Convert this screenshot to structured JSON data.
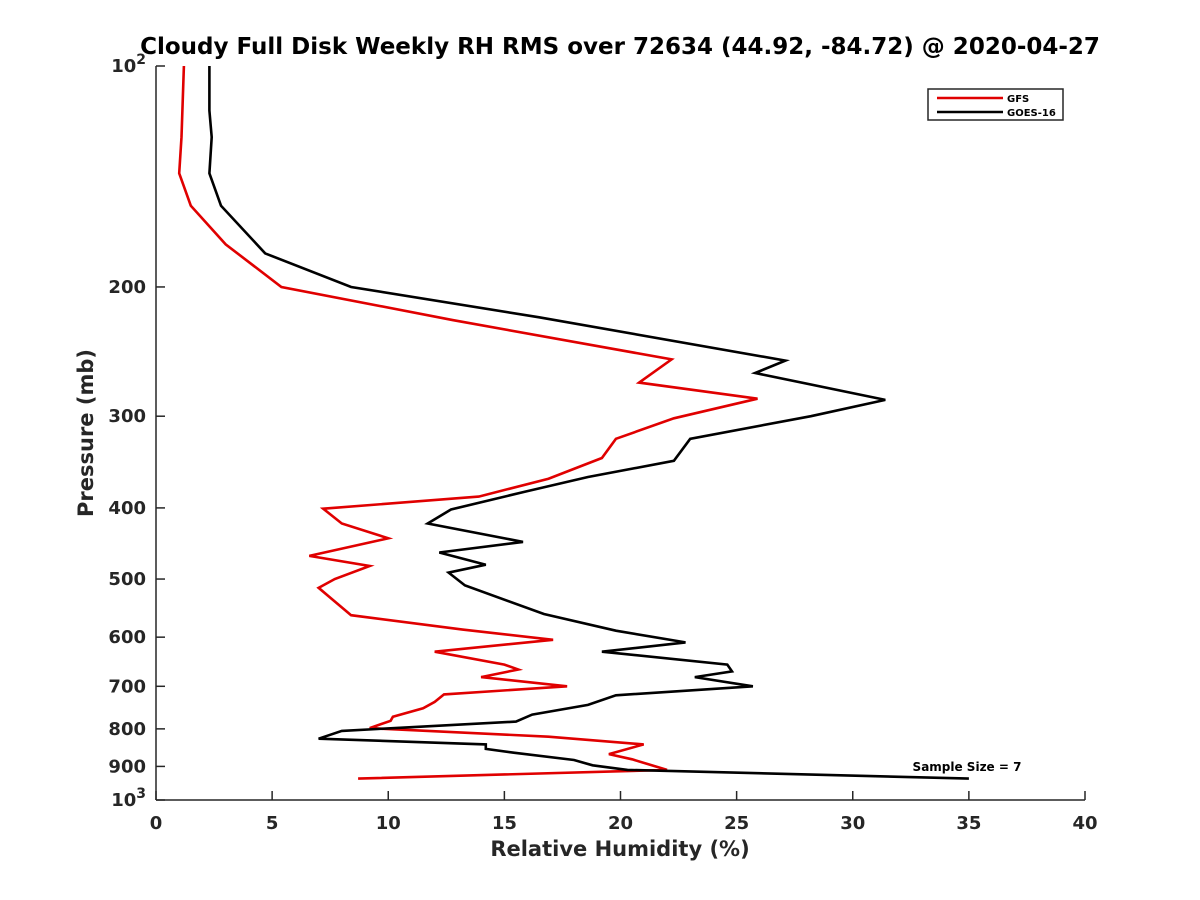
{
  "chart_data": {
    "type": "line",
    "title": "Cloudy Full Disk Weekly RH RMS over 72634 (44.92, -84.72) @ 2020-04-27",
    "xlabel": "Relative Humidity (%)",
    "ylabel": "Pressure (mb)",
    "xlim": [
      0,
      40
    ],
    "ylim": [
      100,
      1000
    ],
    "yscale": "log",
    "y_reversed": true,
    "x_ticks": [
      {
        "value": 0,
        "label": "0"
      },
      {
        "value": 5,
        "label": "5"
      },
      {
        "value": 10,
        "label": "10"
      },
      {
        "value": 15,
        "label": "15"
      },
      {
        "value": 20,
        "label": "20"
      },
      {
        "value": 25,
        "label": "25"
      },
      {
        "value": 30,
        "label": "30"
      },
      {
        "value": 35,
        "label": "35"
      },
      {
        "value": 40,
        "label": "40"
      }
    ],
    "y_ticks": [
      {
        "value": 100,
        "label": "10",
        "exp": "2"
      },
      {
        "value": 200,
        "label": "200"
      },
      {
        "value": 300,
        "label": "300"
      },
      {
        "value": 400,
        "label": "400"
      },
      {
        "value": 500,
        "label": "500"
      },
      {
        "value": 600,
        "label": "600"
      },
      {
        "value": 700,
        "label": "700"
      },
      {
        "value": 800,
        "label": "800"
      },
      {
        "value": 900,
        "label": "900"
      },
      {
        "value": 1000,
        "label": "10",
        "exp": "3"
      }
    ],
    "grid": false,
    "legend_position": "top-right",
    "annotation": "Sample Size = 7",
    "series": [
      {
        "name": "GFS",
        "color": "#e00000",
        "points": [
          [
            1.2,
            100
          ],
          [
            1.1,
            125
          ],
          [
            1.0,
            140
          ],
          [
            1.5,
            155
          ],
          [
            3.0,
            175
          ],
          [
            5.4,
            200
          ],
          [
            12.8,
            222
          ],
          [
            22.2,
            251
          ],
          [
            20.8,
            270
          ],
          [
            25.9,
            284
          ],
          [
            22.3,
            302
          ],
          [
            19.8,
            322
          ],
          [
            19.2,
            342
          ],
          [
            16.9,
            365
          ],
          [
            13.9,
            386
          ],
          [
            7.2,
            401
          ],
          [
            8.0,
            420
          ],
          [
            10.0,
            440
          ],
          [
            6.6,
            465
          ],
          [
            9.2,
            480
          ],
          [
            7.7,
            500
          ],
          [
            7.0,
            514
          ],
          [
            7.5,
            530
          ],
          [
            8.4,
            560
          ],
          [
            13.2,
            586
          ],
          [
            17.1,
            605
          ],
          [
            12.0,
            628
          ],
          [
            15.0,
            654
          ],
          [
            15.6,
            664
          ],
          [
            14.0,
            680
          ],
          [
            17.7,
            700
          ],
          [
            12.4,
            718
          ],
          [
            12.0,
            735
          ],
          [
            11.5,
            750
          ],
          [
            10.2,
            770
          ],
          [
            10.1,
            780
          ],
          [
            9.2,
            798
          ],
          [
            16.9,
            820
          ],
          [
            21.0,
            840
          ],
          [
            19.5,
            866
          ],
          [
            20.5,
            880
          ],
          [
            22.0,
            910
          ],
          [
            8.7,
            935
          ]
        ]
      },
      {
        "name": "GOES-16",
        "color": "#000000",
        "points": [
          [
            2.3,
            100
          ],
          [
            2.3,
            115
          ],
          [
            2.4,
            125
          ],
          [
            2.3,
            140
          ],
          [
            2.8,
            155
          ],
          [
            4.7,
            180
          ],
          [
            8.4,
            200
          ],
          [
            16.5,
            220
          ],
          [
            27.1,
            252
          ],
          [
            25.8,
            262
          ],
          [
            31.4,
            285
          ],
          [
            28.2,
            300
          ],
          [
            23.0,
            322
          ],
          [
            22.3,
            345
          ],
          [
            18.6,
            363
          ],
          [
            15.9,
            380
          ],
          [
            12.7,
            402
          ],
          [
            11.7,
            420
          ],
          [
            15.8,
            445
          ],
          [
            12.2,
            460
          ],
          [
            14.2,
            478
          ],
          [
            12.6,
            490
          ],
          [
            13.3,
            510
          ],
          [
            16.7,
            558
          ],
          [
            19.8,
            588
          ],
          [
            22.8,
            610
          ],
          [
            19.2,
            628
          ],
          [
            24.6,
            654
          ],
          [
            24.8,
            668
          ],
          [
            23.2,
            680
          ],
          [
            25.7,
            700
          ],
          [
            19.8,
            720
          ],
          [
            18.6,
            742
          ],
          [
            16.2,
            765
          ],
          [
            15.5,
            782
          ],
          [
            8.0,
            805
          ],
          [
            7.0,
            825
          ],
          [
            14.2,
            840
          ],
          [
            14.2,
            852
          ],
          [
            15.4,
            862
          ],
          [
            18.0,
            882
          ],
          [
            18.8,
            897
          ],
          [
            20.3,
            910
          ],
          [
            35.0,
            935
          ]
        ]
      }
    ]
  }
}
